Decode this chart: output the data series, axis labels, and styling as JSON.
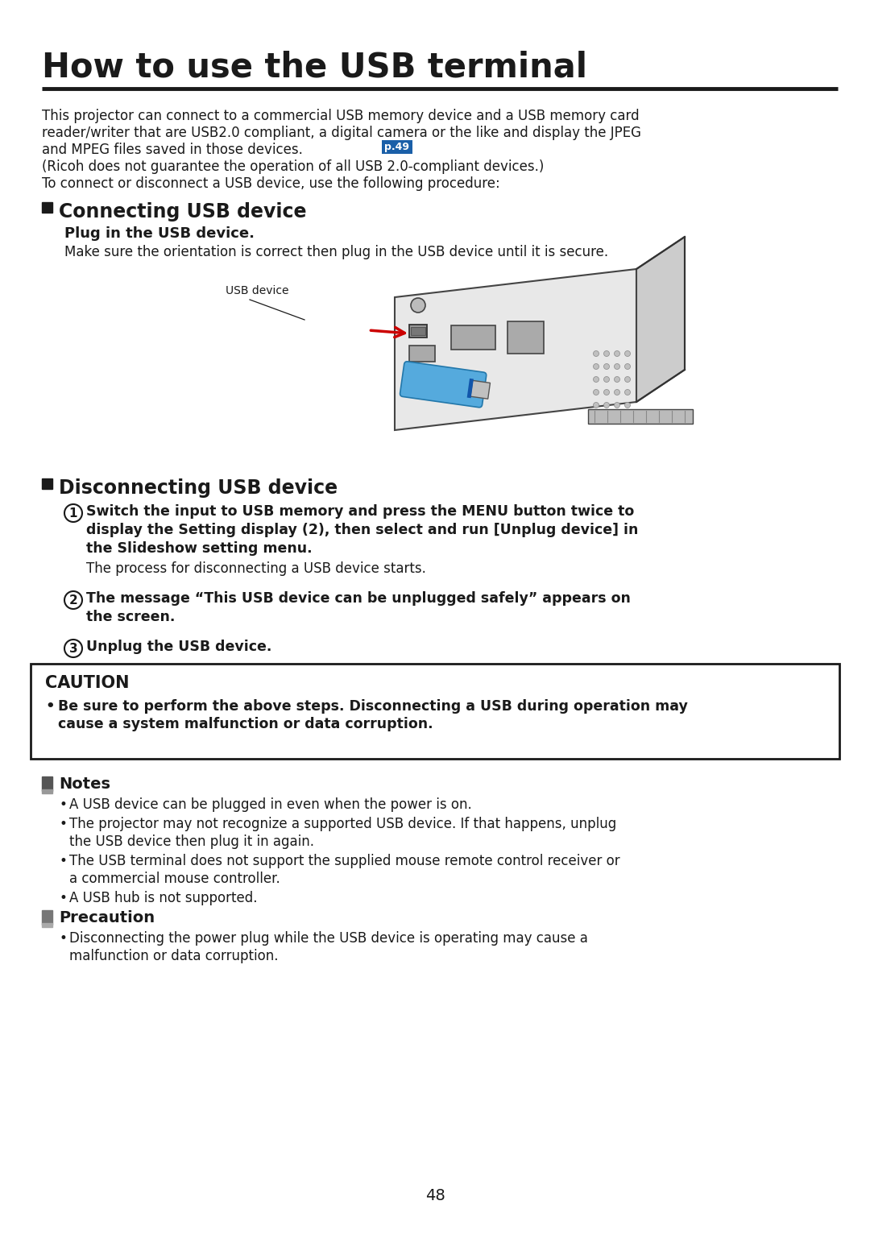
{
  "title": "How to use the USB terminal",
  "background_color": "#ffffff",
  "page_number": "48",
  "intro_line1": "This projector can connect to a commercial USB memory device and a USB memory card",
  "intro_line2": "reader/writer that are USB2.0 compliant, a digital camera or the like and display the JPEG",
  "intro_line3": "and MPEG files saved in those devices.",
  "p49_label": "p.49",
  "p49_bg": "#1a5fa8",
  "intro_line4": "(Ricoh does not guarantee the operation of all USB 2.0-compliant devices.)",
  "intro_line5": "To connect or disconnect a USB device, use the following procedure:",
  "section1_title": "Connecting USB device",
  "section1_sub": "Plug in the USB device.",
  "section1_body": "Make sure the orientation is correct then plug in the USB device until it is secure.",
  "usb_label": "USB device",
  "section2_title": "Disconnecting USB device",
  "step1_line1": "Switch the input to USB memory and press the MENU button twice to",
  "step1_line2": "display the Setting display (2), then select and run [Unplug device] in",
  "step1_line3": "the Slideshow setting menu.",
  "step1_normal": "The process for disconnecting a USB device starts.",
  "step2_line1": "The message “This USB device can be unplugged safely” appears on",
  "step2_line2": "the screen.",
  "step3_text": "Unplug the USB device.",
  "caution_title": "CAUTION",
  "caution_line1": "Be sure to perform the above steps. Disconnecting a USB during operation may",
  "caution_line2": "cause a system malfunction or data corruption.",
  "notes_title": "Notes",
  "note1": "A USB device can be plugged in even when the power is on.",
  "note2_line1": "The projector may not recognize a supported USB device. If that happens, unplug",
  "note2_line2": "the USB device then plug it in again.",
  "note3_line1": "The USB terminal does not support the supplied mouse remote control receiver or",
  "note3_line2": "a commercial mouse controller.",
  "note4": "A USB hub is not supported.",
  "precaution_title": "Precaution",
  "prec_line1": "Disconnecting the power plug while the USB device is operating may cause a",
  "prec_line2": "malfunction or data corruption."
}
